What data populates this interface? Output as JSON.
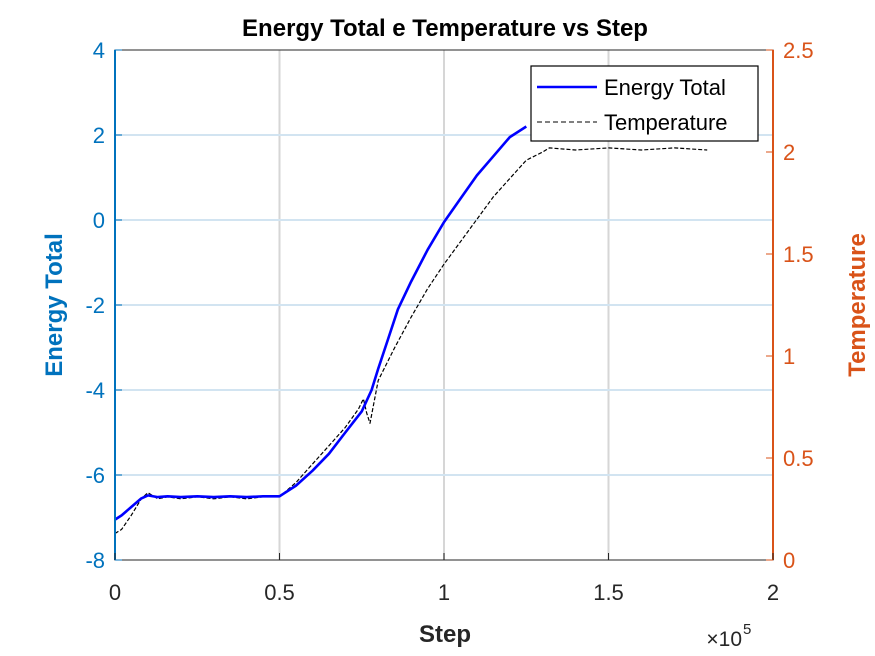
{
  "chart_data": {
    "type": "line",
    "title": "Energy Total e Temperature vs Step",
    "xlabel": "Step",
    "x_exponent_label": "×10",
    "x_exponent_power": "5",
    "xlim": [
      0,
      2
    ],
    "x_ticks": [
      0,
      0.5,
      1,
      1.5,
      2
    ],
    "x_tick_labels": [
      "0",
      "0.5",
      "1",
      "1.5",
      "2"
    ],
    "left_axis": {
      "label": "Energy Total",
      "ylim": [
        -8,
        4
      ],
      "ticks": [
        -8,
        -6,
        -4,
        -2,
        0,
        2,
        4
      ],
      "tick_labels": [
        "-8",
        "-6",
        "-4",
        "-2",
        "0",
        "2",
        "4"
      ],
      "color": "#0072BD"
    },
    "right_axis": {
      "label": "Temperature",
      "ylim": [
        0,
        2.5
      ],
      "ticks": [
        0,
        0.5,
        1,
        1.5,
        2,
        2.5
      ],
      "tick_labels": [
        "0",
        "0.5",
        "1",
        "1.5",
        "2",
        "2.5"
      ],
      "color": "#D95319"
    },
    "grid": true,
    "legend_position": "top-right",
    "series": [
      {
        "name": "Energy Total",
        "axis": "left",
        "color": "#0000FF",
        "style": "solid",
        "x": [
          0,
          0.02,
          0.05,
          0.08,
          0.1,
          0.13,
          0.16,
          0.2,
          0.25,
          0.3,
          0.35,
          0.4,
          0.45,
          0.5,
          0.55,
          0.6,
          0.65,
          0.7,
          0.75,
          0.78,
          0.8,
          0.83,
          0.86,
          0.9,
          0.95,
          1.0,
          1.05,
          1.1,
          1.15,
          1.2,
          1.25
        ],
        "y": [
          -7.05,
          -6.95,
          -6.75,
          -6.55,
          -6.48,
          -6.52,
          -6.5,
          -6.52,
          -6.5,
          -6.52,
          -6.5,
          -6.52,
          -6.5,
          -6.5,
          -6.25,
          -5.9,
          -5.5,
          -5.0,
          -4.5,
          -4.0,
          -3.5,
          -2.8,
          -2.1,
          -1.45,
          -0.7,
          -0.05,
          0.5,
          1.05,
          1.5,
          1.95,
          2.2
        ]
      },
      {
        "name": "Temperature",
        "axis": "right",
        "color": "#000000",
        "style": "dashed",
        "x": [
          0,
          0.02,
          0.05,
          0.08,
          0.1,
          0.13,
          0.16,
          0.2,
          0.25,
          0.3,
          0.35,
          0.4,
          0.45,
          0.5,
          0.55,
          0.6,
          0.65,
          0.7,
          0.74,
          0.755,
          0.765,
          0.775,
          0.8,
          0.85,
          0.9,
          0.95,
          1.0,
          1.05,
          1.1,
          1.15,
          1.2,
          1.25,
          1.3,
          1.32,
          1.4,
          1.5,
          1.6,
          1.7,
          1.8
        ],
        "y": [
          0.13,
          0.15,
          0.22,
          0.3,
          0.33,
          0.3,
          0.31,
          0.3,
          0.31,
          0.3,
          0.31,
          0.3,
          0.31,
          0.31,
          0.38,
          0.47,
          0.56,
          0.65,
          0.74,
          0.79,
          0.72,
          0.67,
          0.88,
          1.04,
          1.19,
          1.33,
          1.45,
          1.56,
          1.67,
          1.78,
          1.87,
          1.96,
          2.0,
          2.02,
          2.01,
          2.02,
          2.01,
          2.02,
          2.01
        ]
      }
    ]
  }
}
